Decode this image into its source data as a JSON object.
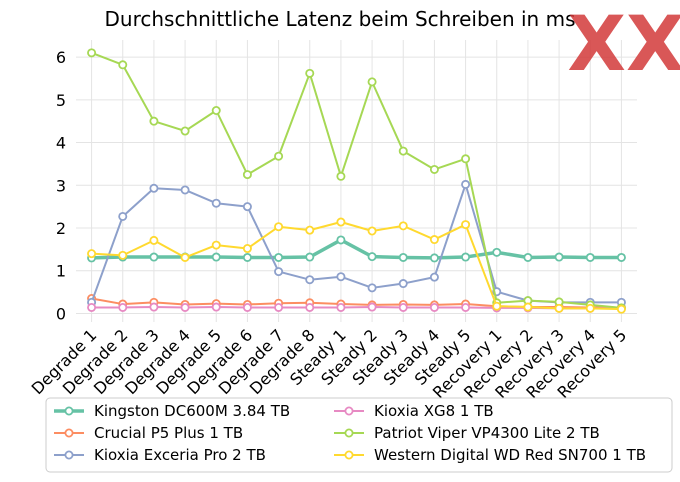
{
  "chart_data": {
    "type": "line",
    "title": "Durchschnittliche Latenz beim Schreiben in ms",
    "xlabel": "",
    "ylabel": "",
    "categories": [
      "Degrade 1",
      "Degrade 2",
      "Degrade 3",
      "Degrade 4",
      "Degrade 5",
      "Degrade 6",
      "Degrade 7",
      "Degrade 8",
      "Steady 1",
      "Steady 2",
      "Steady 3",
      "Steady 4",
      "Steady 5",
      "Recovery 1",
      "Recovery 2",
      "Recovery 3",
      "Recovery 4",
      "Recovery 5"
    ],
    "ylim": [
      -0.2,
      6.4
    ],
    "yticks": [
      0,
      1,
      2,
      3,
      4,
      5,
      6
    ],
    "grid": true,
    "legend_position": "bottom",
    "series": [
      {
        "name": "Kingston DC600M 3.84 TB",
        "color": "#66c2a5",
        "emphasis": true,
        "values": [
          1.3,
          1.32,
          1.32,
          1.32,
          1.32,
          1.31,
          1.31,
          1.32,
          1.72,
          1.33,
          1.31,
          1.3,
          1.32,
          1.43,
          1.31,
          1.32,
          1.31,
          1.31
        ]
      },
      {
        "name": "Crucial P5 Plus 1 TB",
        "color": "#fc8d62",
        "values": [
          0.35,
          0.22,
          0.26,
          0.21,
          0.23,
          0.21,
          0.24,
          0.25,
          0.22,
          0.2,
          0.21,
          0.2,
          0.22,
          0.17,
          0.15,
          0.15,
          0.14,
          0.14
        ]
      },
      {
        "name": "Kioxia Exceria Pro 2 TB",
        "color": "#8da0cb",
        "values": [
          0.26,
          2.27,
          2.93,
          2.89,
          2.58,
          2.5,
          0.98,
          0.79,
          0.86,
          0.6,
          0.7,
          0.85,
          3.02,
          0.51,
          0.3,
          0.26,
          0.26,
          0.26
        ]
      },
      {
        "name": "Kioxia XG8 1 TB",
        "color": "#e78ac3",
        "values": [
          0.14,
          0.14,
          0.15,
          0.14,
          0.15,
          0.14,
          0.14,
          0.14,
          0.14,
          0.15,
          0.14,
          0.14,
          0.14,
          0.13,
          0.13,
          0.12,
          0.12,
          0.12
        ]
      },
      {
        "name": "Patriot Viper VP4300 Lite 2 TB",
        "color": "#a6d854",
        "values": [
          6.1,
          5.82,
          4.5,
          4.27,
          4.75,
          3.25,
          3.68,
          5.62,
          3.21,
          5.42,
          3.8,
          3.37,
          3.62,
          0.25,
          0.3,
          0.27,
          0.2,
          0.13
        ]
      },
      {
        "name": "Western Digital WD Red SN700 1 TB",
        "color": "#ffd92f",
        "values": [
          1.4,
          1.36,
          1.71,
          1.31,
          1.6,
          1.52,
          2.03,
          1.95,
          2.14,
          1.93,
          2.05,
          1.73,
          2.08,
          0.17,
          0.15,
          0.12,
          0.12,
          0.1
        ]
      }
    ]
  },
  "watermark": {
    "text": "XX",
    "color": "#d33a3a"
  }
}
